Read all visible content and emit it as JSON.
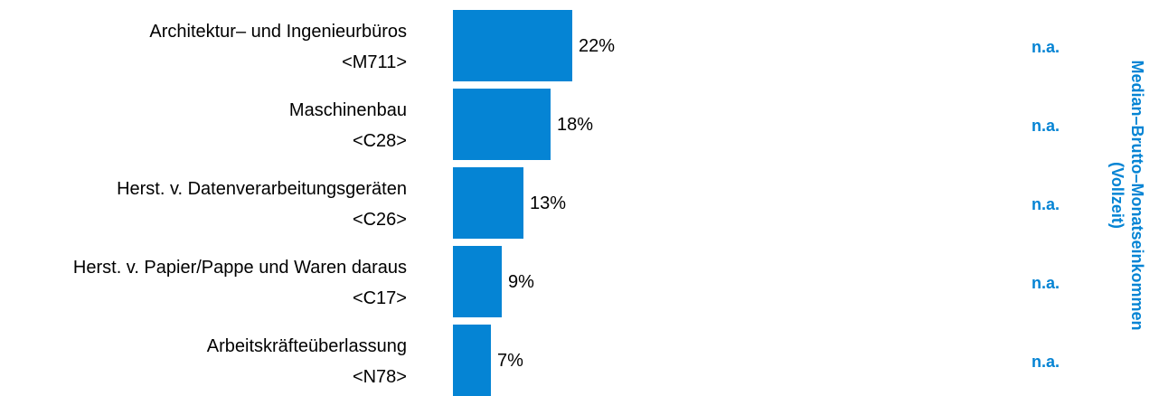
{
  "chart_data": {
    "type": "bar",
    "orientation": "horizontal",
    "categories": [
      {
        "name": "Architektur– und Ingenieurbüros",
        "code": "<M711>"
      },
      {
        "name": "Maschinenbau",
        "code": "<C28>"
      },
      {
        "name": "Herst. v. Datenverarbeitungsgeräten",
        "code": "<C26>"
      },
      {
        "name": "Herst. v. Papier/Pappe und Waren daraus",
        "code": "<C17>"
      },
      {
        "name": "Arbeitskräfteüberlassung",
        "code": "<N78>"
      }
    ],
    "values": [
      22,
      18,
      13,
      9,
      7
    ],
    "value_labels": [
      "22%",
      "18%",
      "13%",
      "9%",
      "7%"
    ],
    "secondary_labels": [
      "n.a.",
      "n.a.",
      "n.a.",
      "n.a.",
      "n.a."
    ],
    "secondary_title_line1": "Median–Brutto–Monatseinkommen",
    "secondary_title_line2": "(Vollzeit)",
    "xlim": [
      0,
      22
    ],
    "grid": false,
    "legend": "none"
  },
  "colors": {
    "bar": "#0584d4",
    "accent": "#0584d4",
    "text": "#000000"
  }
}
